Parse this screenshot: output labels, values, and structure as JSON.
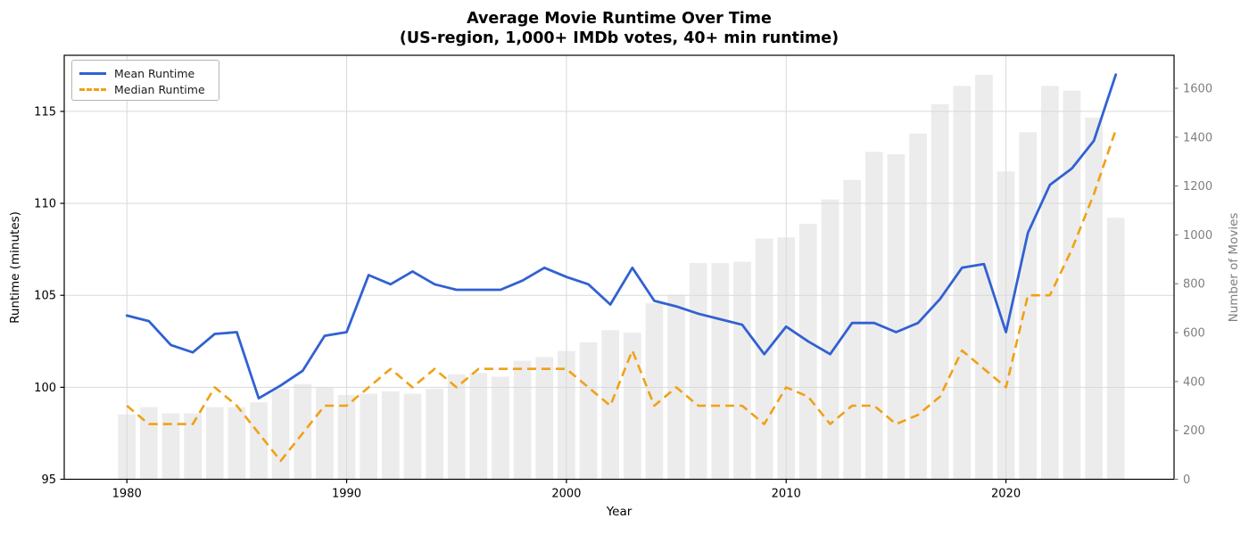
{
  "title": {
    "line1": "Average Movie Runtime Over Time",
    "line2": "(US-region, 1,000+ IMDb votes, 40+ min runtime)"
  },
  "chart_data": {
    "type": "composite",
    "x_years": [
      1980,
      1981,
      1982,
      1983,
      1984,
      1985,
      1986,
      1987,
      1988,
      1989,
      1990,
      1991,
      1992,
      1993,
      1994,
      1995,
      1996,
      1997,
      1998,
      1999,
      2000,
      2001,
      2002,
      2003,
      2004,
      2005,
      2006,
      2007,
      2008,
      2009,
      2010,
      2011,
      2012,
      2013,
      2014,
      2015,
      2016,
      2017,
      2018,
      2019,
      2020,
      2021,
      2022,
      2023,
      2024,
      2025
    ],
    "series": [
      {
        "name": "Mean Runtime",
        "type": "line",
        "style": "solid",
        "axis": "left",
        "color": "#3161d2",
        "values": [
          103.9,
          103.6,
          102.3,
          101.9,
          102.9,
          103.0,
          99.4,
          100.1,
          100.9,
          102.8,
          103.0,
          106.1,
          105.6,
          106.3,
          105.6,
          105.3,
          105.3,
          105.3,
          105.8,
          106.5,
          106.0,
          105.6,
          104.5,
          106.5,
          104.7,
          104.4,
          104.0,
          103.7,
          103.4,
          101.8,
          103.3,
          102.5,
          101.8,
          103.5,
          103.5,
          103.0,
          103.5,
          104.8,
          106.5,
          106.7,
          103.0,
          108.4,
          111.0,
          111.9,
          113.4,
          117.0
        ]
      },
      {
        "name": "Median Runtime",
        "type": "line",
        "style": "dashed",
        "axis": "left",
        "color": "#f0a116",
        "values": [
          99,
          98,
          98,
          98,
          100,
          99,
          97.5,
          96,
          97.5,
          99,
          99,
          100,
          101,
          100,
          101,
          100,
          101,
          101,
          101,
          101,
          101,
          100,
          99,
          102,
          99,
          100,
          99,
          99,
          99,
          98,
          100,
          99.5,
          98,
          99,
          99,
          98,
          98.5,
          99.5,
          102,
          101,
          100,
          105,
          105,
          107.5,
          110.5,
          114
        ]
      },
      {
        "name": "Number of Movies",
        "type": "bar",
        "axis": "right",
        "color": "#ececec",
        "values": [
          265,
          295,
          270,
          270,
          295,
          295,
          315,
          370,
          390,
          375,
          345,
          350,
          360,
          350,
          370,
          430,
          435,
          420,
          485,
          500,
          525,
          560,
          610,
          600,
          720,
          755,
          885,
          885,
          890,
          985,
          990,
          1045,
          1145,
          1225,
          1340,
          1330,
          1415,
          1535,
          1610,
          1655,
          1260,
          1420,
          1610,
          1590,
          1480,
          1070
        ]
      }
    ],
    "left_axis": {
      "label": "Runtime (minutes)",
      "ticks": [
        95,
        100,
        105,
        110,
        115
      ],
      "range": [
        95,
        118.05
      ],
      "color": "#000000"
    },
    "right_axis": {
      "label": "Number of Movies",
      "ticks": [
        0,
        200,
        400,
        600,
        800,
        1000,
        1200,
        1400,
        1600
      ],
      "range": [
        0,
        1735
      ],
      "color": "#7f7f7f"
    },
    "x_axis": {
      "label": "Year",
      "ticks": [
        1980,
        1990,
        2000,
        2010,
        2020
      ],
      "range": [
        1977.15,
        2027.65
      ]
    },
    "legend": {
      "position": "upper-left",
      "entries": [
        "Mean Runtime",
        "Median Runtime"
      ]
    },
    "grid": true,
    "grid_color": "#d9d9d9",
    "bar_width_years": 0.8
  }
}
